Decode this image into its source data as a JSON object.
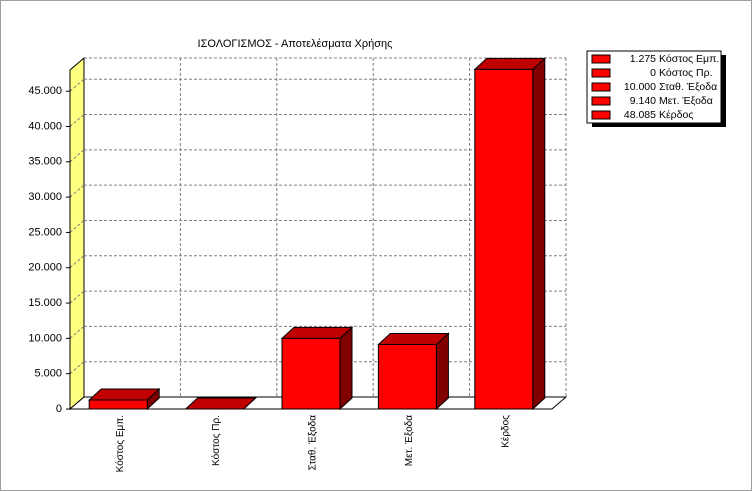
{
  "chart_data": {
    "type": "bar3d",
    "title": "ΙΣΟΛΟΓΙΣΜΟΣ - Αποτελέσματα Χρήσης",
    "categories": [
      "Κόστος Εμπ.",
      "Κόστος Πρ.",
      "Σταθ. Έξοδα",
      "Μετ. Έξοδα",
      "Κέρδος"
    ],
    "values": [
      1275,
      0,
      10000,
      9140,
      48085
    ],
    "value_labels": [
      "1.275",
      "0",
      "10.000",
      "9.140",
      "48.085"
    ],
    "color": "#ff0000",
    "ylim": [
      0,
      48000
    ],
    "yticks": [
      0,
      {
        "value": 5000,
        "label": "5.000"
      },
      {
        "value": 10000,
        "label": "10.000"
      },
      {
        "value": 15000,
        "label": "15.000"
      },
      {
        "value": 20000,
        "label": "20.000"
      },
      {
        "value": 25000,
        "label": "25.000"
      },
      {
        "value": 30000,
        "label": "30.000"
      },
      {
        "value": 35000,
        "label": "35.000"
      },
      {
        "value": 40000,
        "label": "40.000"
      },
      {
        "value": 45000,
        "label": "45.000"
      }
    ],
    "grid": true,
    "legend": "top-right"
  }
}
